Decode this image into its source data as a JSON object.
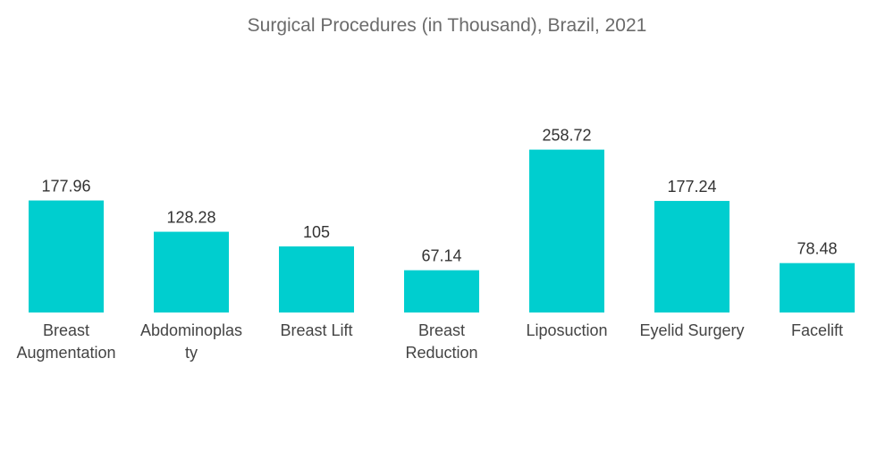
{
  "chart_data": {
    "type": "bar",
    "title": "Surgical Procedures (in Thousand), Brazil, 2021",
    "categories": [
      [
        "Breast",
        "Augmentation"
      ],
      [
        "Abdominoplas",
        "ty"
      ],
      [
        "Breast Lift"
      ],
      [
        "Breast",
        "Reduction"
      ],
      [
        "Liposuction"
      ],
      [
        "Eyelid Surgery"
      ],
      [
        "Facelift"
      ]
    ],
    "values": [
      177.96,
      128.28,
      105,
      67.14,
      258.72,
      177.24,
      78.48
    ],
    "value_labels": [
      "177.96",
      "128.28",
      "105",
      "67.14",
      "258.72",
      "177.24",
      "78.48"
    ],
    "bar_color": "#00cecf",
    "axis_line_color": "#cfcfcf",
    "xlabel": "",
    "ylabel": "",
    "grid": false
  }
}
